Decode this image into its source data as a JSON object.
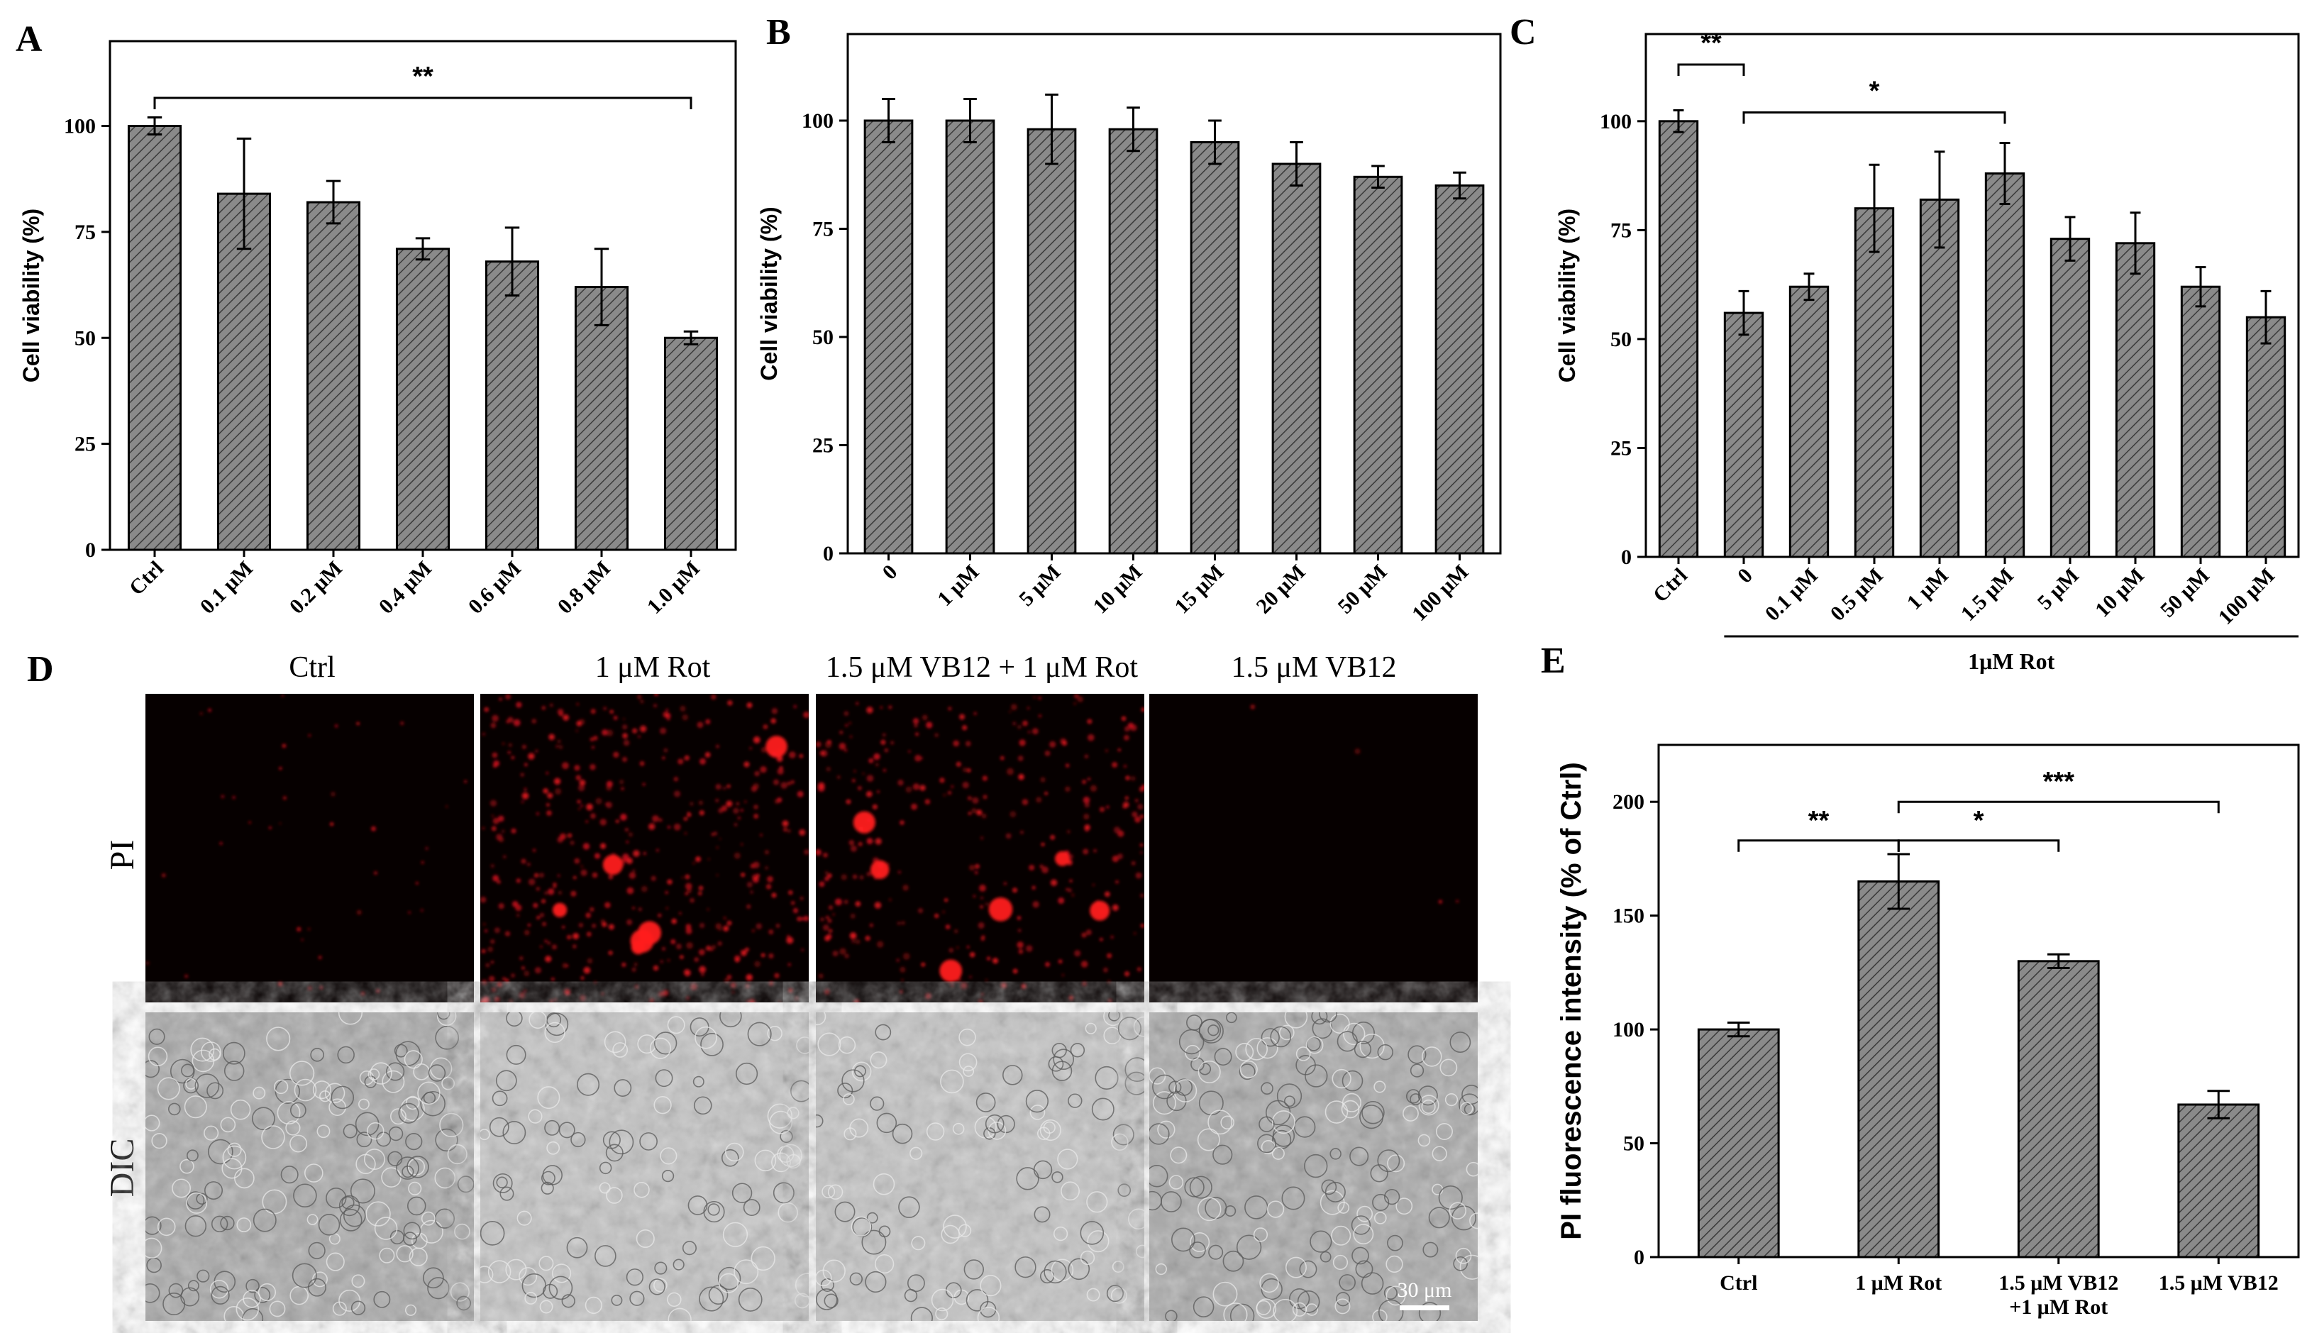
{
  "chart_data": [
    {
      "panel": "A",
      "type": "bar",
      "ylabel": "Cell viability (%)",
      "ylim": [
        0,
        120
      ],
      "yticks": [
        0,
        25,
        50,
        75,
        100
      ],
      "categories": [
        "Ctrl",
        "0.1 μM",
        "0.2 μM",
        "0.4 μM",
        "0.6 μM",
        "0.8 μM",
        "1.0 μM"
      ],
      "values": [
        100,
        84,
        82,
        71,
        68,
        62,
        50
      ],
      "errors": [
        2,
        13,
        5,
        2.5,
        8,
        9,
        1.5
      ],
      "significance": [
        {
          "from": 0,
          "to": 6,
          "label": "**"
        }
      ]
    },
    {
      "panel": "B",
      "type": "bar",
      "ylabel": "Cell viability (%)",
      "ylim": [
        0,
        120
      ],
      "yticks": [
        0,
        25,
        50,
        75,
        100
      ],
      "categories": [
        "0",
        "1 μM",
        "5 μM",
        "10 μM",
        "15 μM",
        "20 μM",
        "50 μM",
        "100 μM"
      ],
      "values": [
        100,
        100,
        98,
        98,
        95,
        90,
        87,
        85
      ],
      "errors": [
        5,
        5,
        8,
        5,
        5,
        5,
        2.5,
        3
      ],
      "significance": []
    },
    {
      "panel": "C",
      "type": "bar",
      "ylabel": "Cell viability (%)",
      "ylim": [
        0,
        120
      ],
      "yticks": [
        0,
        25,
        50,
        75,
        100
      ],
      "categories": [
        "Ctrl",
        "0",
        "0.1 μM",
        "0.5 μM",
        "1 μM",
        "1.5 μM",
        "5 μM",
        "10 μM",
        "50 μM",
        "100 μM"
      ],
      "values": [
        100,
        56,
        62,
        80,
        82,
        88,
        73,
        72,
        62,
        55
      ],
      "errors": [
        2.5,
        5,
        3,
        10,
        11,
        7,
        5,
        7,
        4.5,
        6
      ],
      "significance": [
        {
          "from": 0,
          "to": 1,
          "label": "**"
        },
        {
          "from": 1,
          "to": 5,
          "label": "*"
        }
      ],
      "group_label": "1μM Rot"
    },
    {
      "panel": "E",
      "type": "bar",
      "ylabel": "PI fluorescence intensity (% of Ctrl)",
      "ylim": [
        0,
        225
      ],
      "yticks": [
        0,
        50,
        100,
        150,
        200
      ],
      "categories": [
        "Ctrl",
        "1 μM Rot",
        "1.5 μM VB12\n+1 μM Rot",
        "1.5 μM VB12"
      ],
      "values": [
        100,
        165,
        130,
        67
      ],
      "errors": [
        3,
        12,
        3,
        6
      ],
      "significance": [
        {
          "from": 0,
          "to": 1,
          "label": "**"
        },
        {
          "from": 1,
          "to": 2,
          "label": "*"
        },
        {
          "from": 1,
          "to": 3,
          "label": "***"
        }
      ]
    }
  ],
  "micrographs": {
    "panel": "D",
    "columns": [
      "Ctrl",
      "1 μM Rot",
      "1.5 μM VB12 + 1 μM Rot",
      "1.5 μM VB12"
    ],
    "rows": [
      "PI",
      "DIC"
    ],
    "scale_bar": "30 μm",
    "pi_color": "#e0141e"
  },
  "colors": {
    "bar_fill": "#8a8a8a",
    "hatch": "#3a3a3a",
    "axis": "#000000"
  }
}
